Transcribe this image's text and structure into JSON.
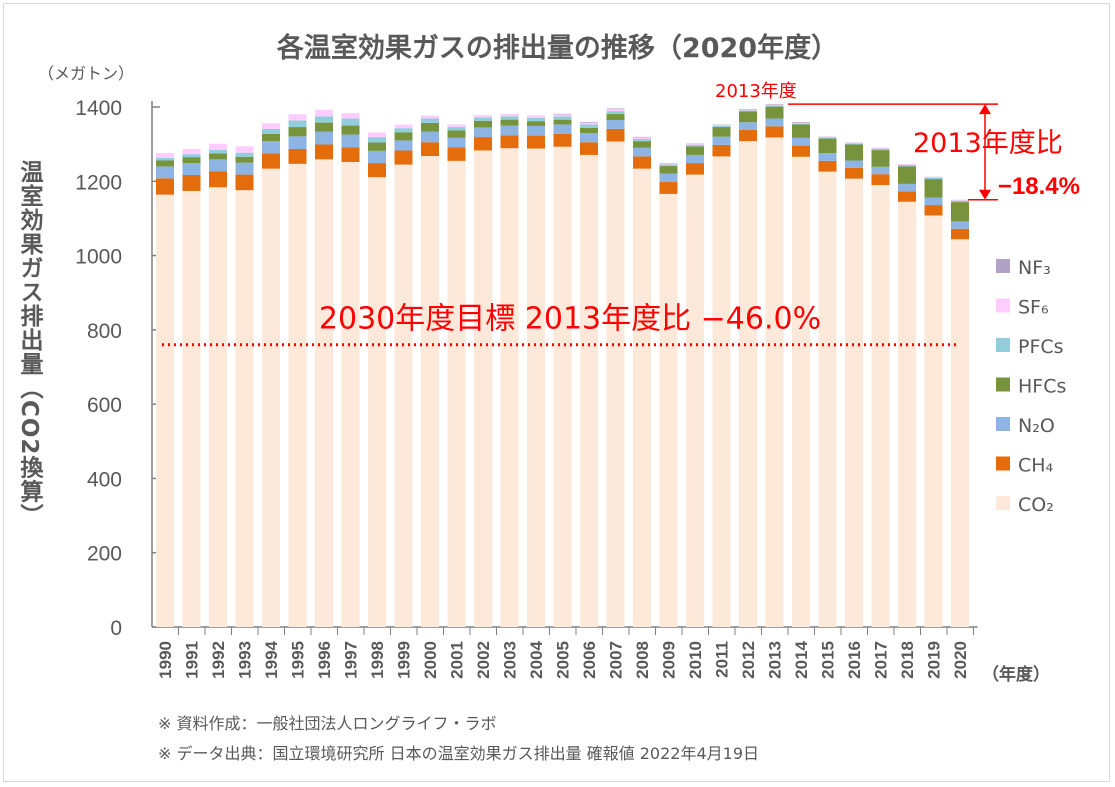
{
  "chart_data": {
    "type": "bar",
    "stacked": true,
    "title": "各温室効果ガスの排出量の推移（2020年度）",
    "ylabel": "温室効果ガス排出量（CO2換算）",
    "yunit": "（メガトン）",
    "xunit": "（年度）",
    "ylim": [
      0,
      1400
    ],
    "yticks": [
      0,
      200,
      400,
      600,
      800,
      1000,
      1200,
      1400
    ],
    "grid": false,
    "legend_position": "right",
    "categories": [
      "1990",
      "1991",
      "1992",
      "1993",
      "1994",
      "1995",
      "1996",
      "1997",
      "1998",
      "1999",
      "2000",
      "2001",
      "2002",
      "2003",
      "2004",
      "2005",
      "2006",
      "2007",
      "2008",
      "2009",
      "2010",
      "2011",
      "2012",
      "2013",
      "2014",
      "2015",
      "2016",
      "2017",
      "2018",
      "2019",
      "2020"
    ],
    "series": [
      {
        "name": "CO₂",
        "color": "#fde9d9",
        "values": [
          1164,
          1174,
          1184,
          1176,
          1234,
          1247,
          1259,
          1252,
          1211,
          1245,
          1268,
          1255,
          1283,
          1289,
          1288,
          1293,
          1271,
          1307,
          1234,
          1166,
          1218,
          1267,
          1308,
          1318,
          1266,
          1226,
          1207,
          1190,
          1145,
          1108,
          1044
        ]
      },
      {
        "name": "CH₄",
        "color": "#e46c0a",
        "values": [
          44,
          43,
          43,
          42,
          41,
          40,
          40,
          39,
          38,
          38,
          37,
          36,
          36,
          35,
          35,
          35,
          34,
          34,
          33,
          32,
          31,
          31,
          30,
          30,
          30,
          29,
          29,
          29,
          28,
          28,
          28
        ]
      },
      {
        "name": "N₂O",
        "color": "#8db4e2",
        "values": [
          32,
          32,
          32,
          32,
          33,
          34,
          35,
          35,
          33,
          27,
          29,
          26,
          26,
          26,
          26,
          25,
          25,
          24,
          23,
          23,
          22,
          22,
          21,
          21,
          21,
          21,
          20,
          20,
          20,
          20,
          20
        ]
      },
      {
        "name": "HFCs",
        "color": "#77933c",
        "values": [
          16,
          16,
          16,
          16,
          20,
          25,
          24,
          24,
          23,
          22,
          23,
          20,
          18,
          16,
          13,
          13,
          14,
          16,
          18,
          20,
          23,
          26,
          29,
          32,
          36,
          39,
          43,
          45,
          47,
          50,
          52
        ]
      },
      {
        "name": "PFCs",
        "color": "#92cddc",
        "values": [
          7,
          8,
          10,
          11,
          13,
          18,
          17,
          19,
          14,
          11,
          12,
          9,
          9,
          9,
          9,
          9,
          9,
          8,
          6,
          4,
          4,
          3,
          3,
          3,
          3,
          3,
          3,
          4,
          4,
          4,
          4
        ]
      },
      {
        "name": "SF₆",
        "color": "#ffccff",
        "values": [
          13,
          14,
          16,
          17,
          15,
          16,
          17,
          14,
          12,
          9,
          7,
          6,
          5,
          5,
          5,
          5,
          5,
          5,
          4,
          2,
          2,
          2,
          2,
          2,
          2,
          2,
          2,
          2,
          2,
          2,
          2
        ]
      },
      {
        "name": "NF₃",
        "color": "#b2a1c7",
        "values": [
          0.03,
          0.03,
          0.04,
          0.04,
          0.1,
          0.2,
          0.2,
          0.3,
          0.3,
          0.3,
          0.3,
          0.4,
          0.5,
          0.6,
          0.8,
          1.5,
          1.7,
          2.0,
          1.5,
          1.4,
          1.5,
          1.4,
          1.4,
          1.6,
          1.6,
          0.6,
          0.6,
          0.4,
          0.3,
          0.3,
          0.3
        ]
      }
    ],
    "annotations": {
      "ref_year_label": "2013年度",
      "reduction_label": "2013年度比",
      "reduction_value": "−18.4%",
      "target_label": "2030年度目標 2013年度比 −46.0%",
      "target_value": 760,
      "accent_color": "#ff0000"
    }
  },
  "notes": [
    "※ 資料作成：一般社団法人ロングライフ・ラボ",
    "※ データ出典：国立環境研究所 日本の温室効果ガス排出量 確報値 2022年4月19日"
  ]
}
